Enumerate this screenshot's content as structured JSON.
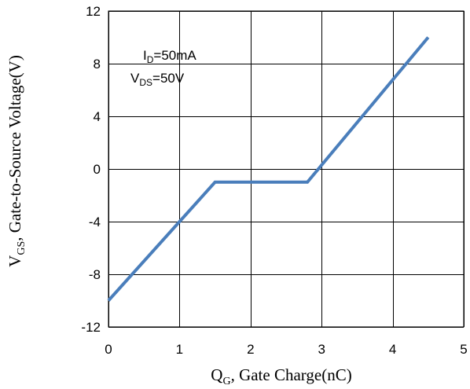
{
  "chart_data": {
    "type": "line",
    "title": "",
    "xlabel": {
      "main": "Q",
      "sub": "G",
      "rest": ", Gate Charge(nC)"
    },
    "ylabel": {
      "main": "V",
      "sub": "GS",
      "rest": ", Gate-to-Source Voltage(V)"
    },
    "xlim": [
      0,
      5
    ],
    "ylim": [
      -12,
      12
    ],
    "x_ticks": [
      0,
      1,
      2,
      3,
      4,
      5
    ],
    "y_ticks": [
      -12,
      -8,
      -4,
      0,
      4,
      8,
      12
    ],
    "grid": true,
    "annotations": [
      {
        "main": "I",
        "sub": "D",
        "rest": "=50mA"
      },
      {
        "main": "V",
        "sub": "DS",
        "rest": "=50V"
      }
    ],
    "series": [
      {
        "color": "#4A7EBB",
        "x": [
          0,
          1.5,
          2.8,
          4.5
        ],
        "y": [
          -10,
          -1,
          -1,
          10
        ]
      }
    ]
  }
}
